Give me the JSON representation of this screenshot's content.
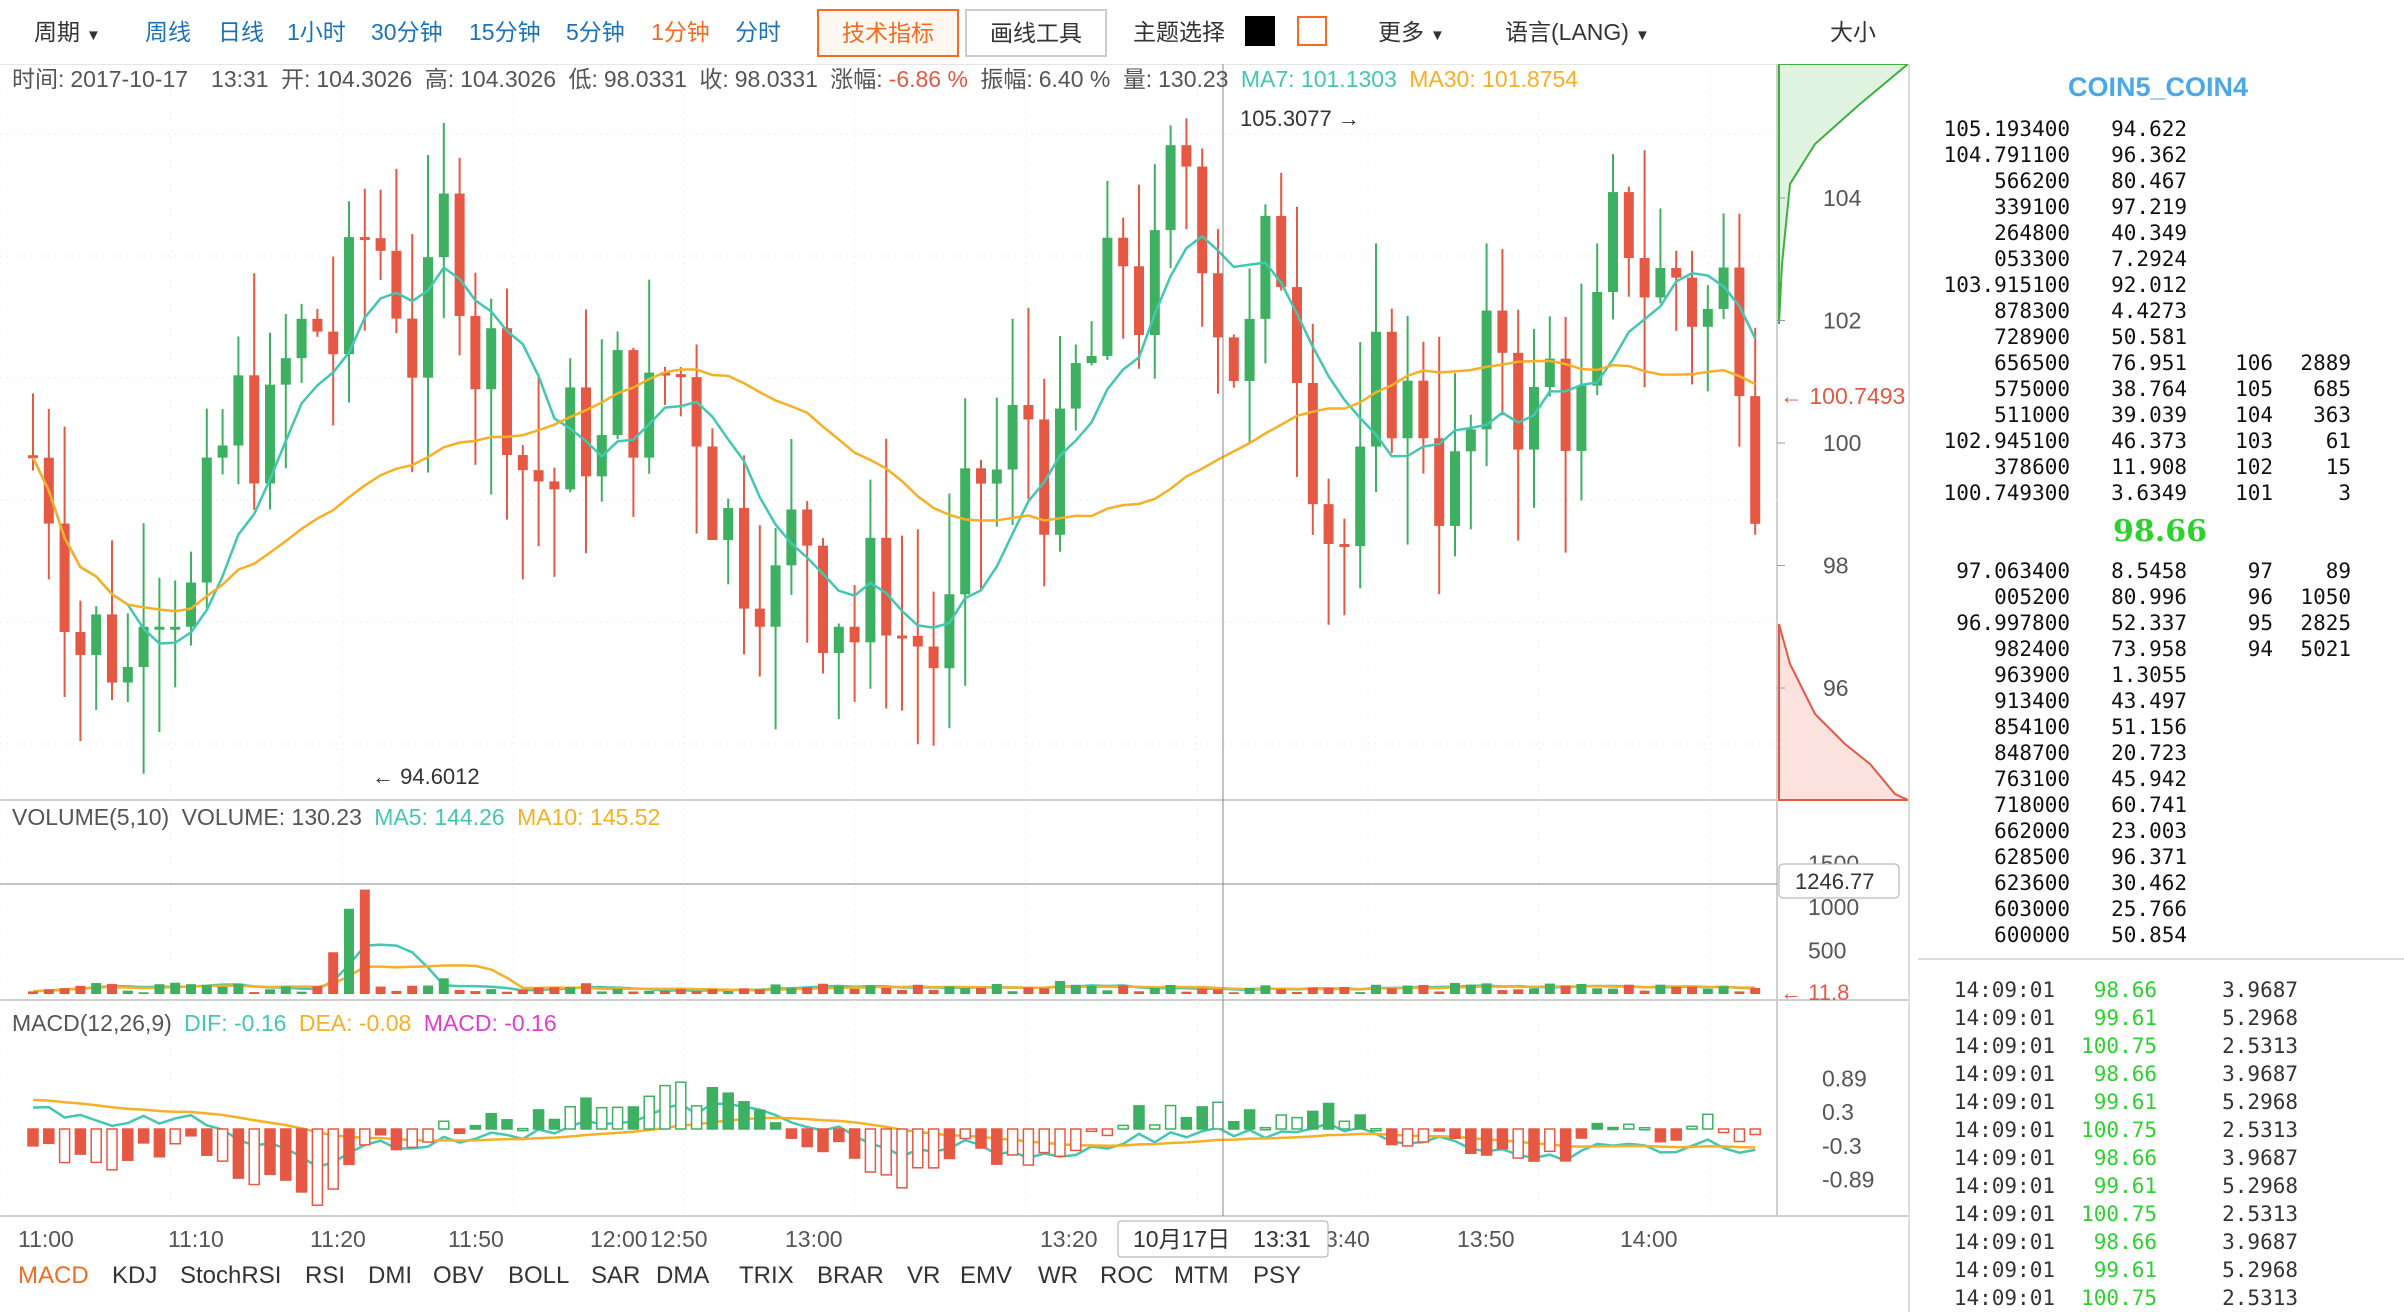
{
  "toolbar": {
    "period_label": "周期",
    "periods": [
      "周线",
      "日线",
      "1小时",
      "30分钟",
      "15分钟",
      "5分钟",
      "1分钟",
      "分时"
    ],
    "active_period": "1分钟",
    "indicators_button": "技术指标",
    "drawing_button": "画线工具",
    "theme_label": "主题选择",
    "theme_dark_color": "#000000",
    "theme_light_color": "#f36c21",
    "more_label": "更多",
    "language_label": "语言(LANG)",
    "size_label": "大小"
  },
  "main_chart": {
    "time_label": "时间:",
    "time_value": "2017-10-17　13:31",
    "open_label": "开:",
    "open_value": "104.3026",
    "high_label": "高:",
    "high_value": "104.3026",
    "low_label": "低:",
    "low_value": "98.0331",
    "close_label": "收:",
    "close_value": "98.0331",
    "change_label": "涨幅:",
    "change_value": "-6.86 %",
    "amplitude_label": "振幅:",
    "amplitude_value": "6.40 %",
    "volume_label": "量:",
    "volume_value": "130.23",
    "ma7_text": "MA7: 101.1303",
    "ma30_text": "MA30: 101.8754",
    "max_marker": "105.3077",
    "min_marker": "94.6012",
    "price_ticks": [
      "104",
      "102",
      "100",
      "98",
      "96"
    ],
    "current_price_tag": "100.7493"
  },
  "volume_chart": {
    "name": "VOLUME(5,10)",
    "value_text": "VOLUME: 130.23",
    "ma5_text": "MA5: 144.26",
    "ma10_text": "MA10: 145.52",
    "ticks": [
      "1500",
      "1000",
      "500"
    ],
    "crosshair_tag": "1246.77",
    "last_tag": "11.8"
  },
  "macd_chart": {
    "name": "MACD(12,26,9)",
    "dif_text": "DIF: -0.16",
    "dea_text": "DEA: -0.08",
    "macd_text": "MACD: -0.16",
    "ticks": [
      "0.89",
      "0.3",
      "-0.3",
      "-0.89"
    ]
  },
  "time_axis": {
    "labels": [
      "11:00",
      "11:10",
      "11:20",
      "11:50",
      "12:00",
      "12:50",
      "13:00",
      "13:20",
      "3:40",
      "13:50",
      "14:00"
    ],
    "crosshair_label": "10月17日　13:31"
  },
  "indicator_tabs": [
    "MACD",
    "KDJ",
    "StochRSI",
    "RSI",
    "DMI",
    "OBV",
    "BOLL",
    "SAR",
    "DMA",
    "TRIX",
    "BRAR",
    "VR",
    "EMV",
    "WR",
    "ROC",
    "MTM",
    "PSY"
  ],
  "active_indicator": "MACD",
  "colors": {
    "up": "#3db061",
    "down": "#e55844",
    "ma_teal": "#43c7b2",
    "ma_orange": "#f5b025",
    "brand_orange": "#f36c21",
    "title_blue": "#4aa8e8",
    "last_price_green": "#2dd12d"
  },
  "side_panel": {
    "symbol": "COIN5_COIN4",
    "asks": [
      [
        "105.193400",
        "94.622",
        "",
        ""
      ],
      [
        "104.791100",
        "96.362",
        "",
        ""
      ],
      [
        "566200",
        "80.467",
        "",
        ""
      ],
      [
        "339100",
        "97.219",
        "",
        ""
      ],
      [
        "264800",
        "40.349",
        "",
        ""
      ],
      [
        "053300",
        "7.2924",
        "",
        ""
      ],
      [
        "103.915100",
        "92.012",
        "",
        ""
      ],
      [
        "878300",
        "4.4273",
        "",
        ""
      ],
      [
        "728900",
        "50.581",
        "",
        ""
      ],
      [
        "656500",
        "76.951",
        "106",
        "2889"
      ],
      [
        "575000",
        "38.764",
        "105",
        "685"
      ],
      [
        "511000",
        "39.039",
        "104",
        "363"
      ],
      [
        "102.945100",
        "46.373",
        "103",
        "61"
      ],
      [
        "378600",
        "11.908",
        "102",
        "15"
      ],
      [
        "100.749300",
        "3.6349",
        "101",
        "3"
      ]
    ],
    "last_price": "98.66",
    "bids": [
      [
        "97.063400",
        "8.5458",
        "97",
        "89"
      ],
      [
        "005200",
        "80.996",
        "96",
        "1050"
      ],
      [
        "96.997800",
        "52.337",
        "95",
        "2825"
      ],
      [
        "982400",
        "73.958",
        "94",
        "5021"
      ],
      [
        "963900",
        "1.3055",
        "",
        ""
      ],
      [
        "913400",
        "43.497",
        "",
        ""
      ],
      [
        "854100",
        "51.156",
        "",
        ""
      ],
      [
        "848700",
        "20.723",
        "",
        ""
      ],
      [
        "763100",
        "45.942",
        "",
        ""
      ],
      [
        "718000",
        "60.741",
        "",
        ""
      ],
      [
        "662000",
        "23.003",
        "",
        ""
      ],
      [
        "628500",
        "96.371",
        "",
        ""
      ],
      [
        "623600",
        "30.462",
        "",
        ""
      ],
      [
        "603000",
        "25.766",
        "",
        ""
      ],
      [
        "600000",
        "50.854",
        "",
        ""
      ]
    ],
    "trades": [
      [
        "14:09:01",
        "98.66",
        "3.9687"
      ],
      [
        "14:09:01",
        "99.61",
        "5.2968"
      ],
      [
        "14:09:01",
        "100.75",
        "2.5313"
      ],
      [
        "14:09:01",
        "98.66",
        "3.9687"
      ],
      [
        "14:09:01",
        "99.61",
        "5.2968"
      ],
      [
        "14:09:01",
        "100.75",
        "2.5313"
      ],
      [
        "14:09:01",
        "98.66",
        "3.9687"
      ],
      [
        "14:09:01",
        "99.61",
        "5.2968"
      ],
      [
        "14:09:01",
        "100.75",
        "2.5313"
      ],
      [
        "14:09:01",
        "98.66",
        "3.9687"
      ],
      [
        "14:09:01",
        "99.61",
        "5.2968"
      ],
      [
        "14:09:01",
        "100.75",
        "2.5313"
      ]
    ]
  }
}
